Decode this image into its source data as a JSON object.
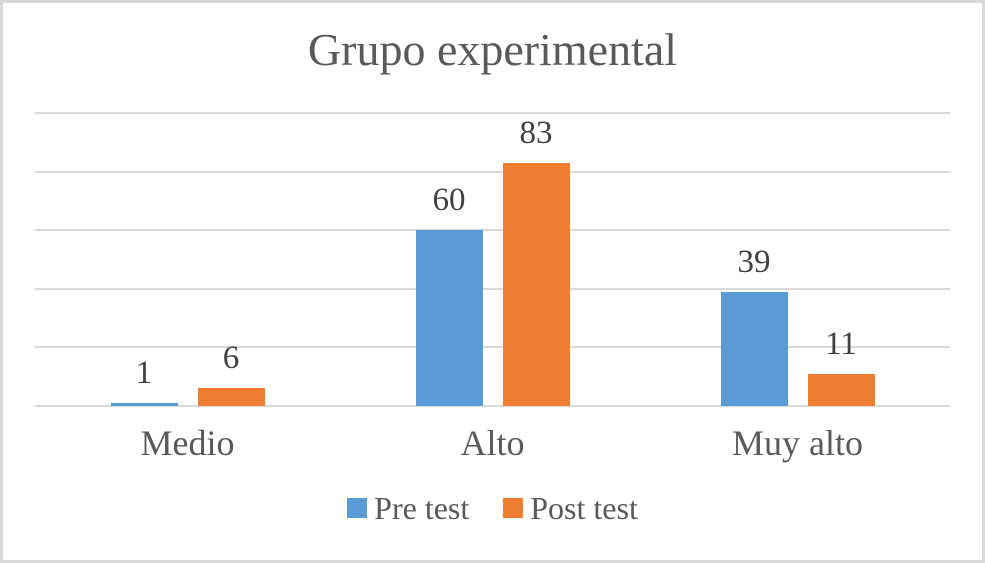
{
  "chart_data": {
    "type": "bar",
    "title": "Grupo experimental",
    "categories": [
      "Medio",
      "Alto",
      "Muy alto"
    ],
    "series": [
      {
        "name": "Pre test",
        "color": "#5B9BD5",
        "values": [
          1,
          60,
          39
        ]
      },
      {
        "name": "Post test",
        "color": "#ED7D31",
        "values": [
          6,
          83,
          11
        ]
      }
    ],
    "data_labels": [
      [
        "1",
        "60",
        "39"
      ],
      [
        "6",
        "83",
        "11"
      ]
    ],
    "xlabel": "",
    "ylabel": "",
    "ylim": [
      0,
      100
    ],
    "gridline_step": 20,
    "grid": true,
    "y_axis_labels_visible": false,
    "legend_position": "bottom"
  },
  "colors": {
    "background": "#FFFFFF",
    "frame_border": "#D9D9D9",
    "gridline": "#D9D9D9",
    "title_text": "#595959",
    "axis_text": "#595959",
    "value_label_text": "#404040"
  }
}
